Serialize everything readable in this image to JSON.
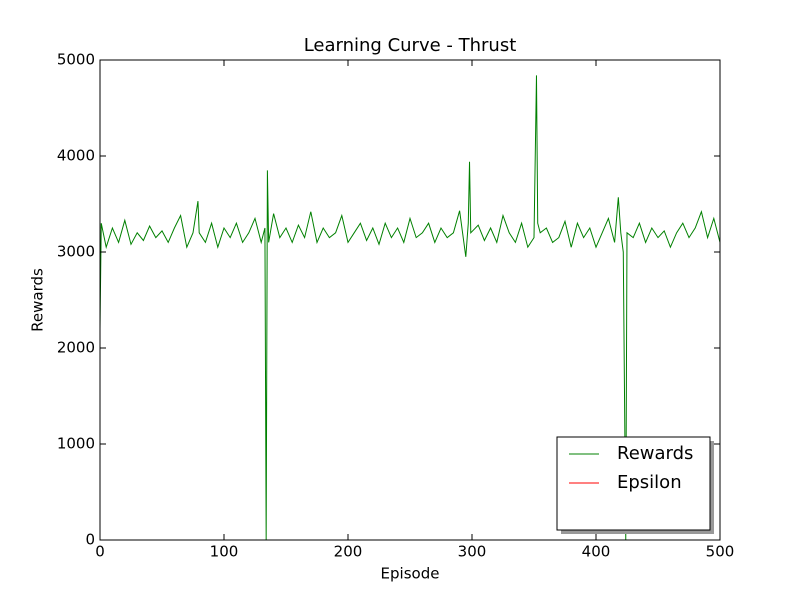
{
  "chart_data": {
    "type": "line",
    "title": "Learning Curve - Thrust",
    "x_label": "Episode",
    "y_label": "Rewards",
    "xlim": [
      0,
      500
    ],
    "ylim": [
      0,
      5000
    ],
    "xticks": [
      0,
      100,
      200,
      300,
      400,
      500
    ],
    "yticks": [
      0,
      1000,
      2000,
      3000,
      4000,
      5000
    ],
    "legend": "lower right",
    "series": [
      {
        "name": "Rewards",
        "color": "#008000",
        "x": [
          0,
          1,
          5,
          10,
          15,
          20,
          25,
          30,
          35,
          40,
          45,
          50,
          55,
          60,
          65,
          70,
          75,
          79,
          80,
          85,
          90,
          95,
          100,
          105,
          110,
          115,
          120,
          125,
          130,
          133,
          134,
          135,
          136,
          140,
          145,
          150,
          155,
          160,
          165,
          170,
          175,
          180,
          185,
          190,
          195,
          200,
          205,
          210,
          215,
          220,
          225,
          230,
          235,
          240,
          245,
          250,
          255,
          260,
          265,
          270,
          275,
          280,
          285,
          290,
          295,
          297,
          298,
          299,
          305,
          310,
          315,
          320,
          325,
          330,
          335,
          340,
          345,
          350,
          352,
          353,
          355,
          360,
          365,
          370,
          375,
          380,
          385,
          390,
          395,
          400,
          405,
          410,
          415,
          418,
          420,
          422,
          424,
          425,
          430,
          435,
          440,
          445,
          450,
          455,
          460,
          465,
          470,
          475,
          480,
          485,
          490,
          495,
          500
        ],
        "values": [
          2200,
          3300,
          3050,
          3250,
          3100,
          3330,
          3080,
          3200,
          3120,
          3270,
          3150,
          3220,
          3100,
          3250,
          3380,
          3050,
          3200,
          3530,
          3200,
          3100,
          3300,
          3050,
          3250,
          3150,
          3300,
          3100,
          3200,
          3350,
          3100,
          3250,
          0,
          3850,
          3100,
          3400,
          3150,
          3250,
          3100,
          3280,
          3150,
          3420,
          3100,
          3250,
          3150,
          3200,
          3380,
          3100,
          3200,
          3300,
          3120,
          3250,
          3080,
          3300,
          3150,
          3250,
          3100,
          3350,
          3150,
          3200,
          3300,
          3100,
          3250,
          3150,
          3200,
          3430,
          2950,
          3300,
          3940,
          3200,
          3280,
          3120,
          3250,
          3100,
          3380,
          3200,
          3100,
          3300,
          3050,
          3150,
          4840,
          3300,
          3200,
          3250,
          3100,
          3150,
          3320,
          3050,
          3300,
          3150,
          3250,
          3050,
          3200,
          3350,
          3100,
          3570,
          3200,
          3000,
          0,
          3200,
          3150,
          3300,
          3100,
          3250,
          3150,
          3220,
          3050,
          3200,
          3300,
          3150,
          3250,
          3420,
          3150,
          3350,
          3100
        ]
      },
      {
        "name": "Epsilon",
        "color": "#ff0000",
        "x": [
          0,
          500
        ],
        "values": [
          0,
          0
        ]
      }
    ]
  }
}
